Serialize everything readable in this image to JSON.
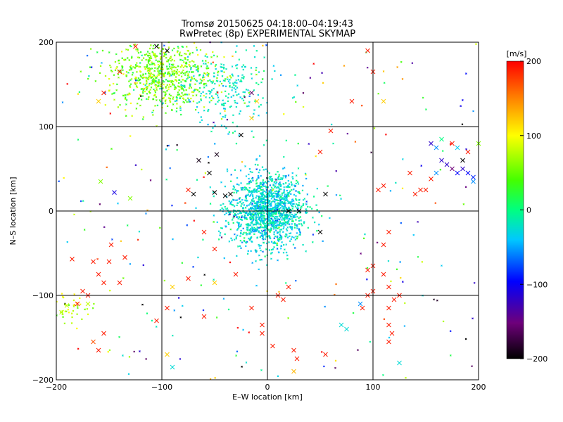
{
  "chart_data": {
    "type": "scatter",
    "title": "Tromsø 20150625 04:18:00–04:19:43",
    "subtitle": "RwPretec (8p) EXPERIMENTAL SKYMAP",
    "xlabel": "E–W location [km]",
    "ylabel": "N–S location [km]",
    "xlim": [
      -200,
      200
    ],
    "ylim": [
      -200,
      200
    ],
    "xticks": [
      -200,
      -100,
      0,
      100,
      200
    ],
    "yticks": [
      -200,
      -100,
      0,
      100,
      200
    ],
    "grid": true,
    "colorbar": {
      "label": "[m/s]",
      "range": [
        -200,
        200
      ],
      "ticks": [
        -200,
        -100,
        0,
        100,
        200
      ],
      "colormap": "rainbow: black-purple-blue-cyan-green-yellow-red"
    },
    "clusters": [
      {
        "name": "center",
        "x": 0,
        "y": 0,
        "spread_x": 18,
        "spread_y": 22,
        "count": 1400,
        "velocity": -30,
        "velocity_spread": 20,
        "marker": "dot"
      },
      {
        "name": "upper-left",
        "x": -100,
        "y": 160,
        "spread_x": 25,
        "spread_y": 20,
        "count": 700,
        "velocity": 55,
        "velocity_spread": 25,
        "marker": "dot"
      },
      {
        "name": "upper-mid",
        "x": -40,
        "y": 140,
        "spread_x": 25,
        "spread_y": 25,
        "count": 250,
        "velocity": -25,
        "velocity_spread": 15,
        "marker": "dot"
      },
      {
        "name": "lower-left",
        "x": -185,
        "y": -115,
        "spread_x": 8,
        "spread_y": 10,
        "count": 40,
        "velocity": 80,
        "velocity_spread": 20,
        "marker": "dot"
      },
      {
        "name": "background",
        "x": 0,
        "y": 0,
        "spread_x": 200,
        "spread_y": 200,
        "count": 250,
        "velocity": 0,
        "velocity_spread": 120,
        "marker": "dot"
      }
    ],
    "x_markers": [
      {
        "x": -165,
        "y": -155,
        "v": 170
      },
      {
        "x": -160,
        "y": -165,
        "v": 190
      },
      {
        "x": -155,
        "y": -145,
        "v": 190
      },
      {
        "x": -170,
        "y": -100,
        "v": 190
      },
      {
        "x": -180,
        "y": -110,
        "v": 190
      },
      {
        "x": -175,
        "y": -95,
        "v": 190
      },
      {
        "x": -155,
        "y": -85,
        "v": 190
      },
      {
        "x": -160,
        "y": -75,
        "v": 190
      },
      {
        "x": -165,
        "y": -60,
        "v": 190
      },
      {
        "x": -150,
        "y": -60,
        "v": 190
      },
      {
        "x": -185,
        "y": -57,
        "v": 190
      },
      {
        "x": -195,
        "y": -120,
        "v": 80
      },
      {
        "x": -190,
        "y": -112,
        "v": 80
      },
      {
        "x": -140,
        "y": -85,
        "v": 190
      },
      {
        "x": -148,
        "y": -40,
        "v": 190
      },
      {
        "x": -95,
        "y": 190,
        "v": -200
      },
      {
        "x": -105,
        "y": 195,
        "v": -200
      },
      {
        "x": -125,
        "y": 195,
        "v": 190
      },
      {
        "x": -140,
        "y": 165,
        "v": 190
      },
      {
        "x": -155,
        "y": 140,
        "v": 190
      },
      {
        "x": -160,
        "y": 130,
        "v": 120
      },
      {
        "x": -158,
        "y": 35,
        "v": 60
      },
      {
        "x": -145,
        "y": 22,
        "v": -110
      },
      {
        "x": -130,
        "y": 15,
        "v": 60
      },
      {
        "x": -90,
        "y": -185,
        "v": -30
      },
      {
        "x": -95,
        "y": -115,
        "v": 190
      },
      {
        "x": -90,
        "y": -90,
        "v": 120
      },
      {
        "x": -105,
        "y": -130,
        "v": 190
      },
      {
        "x": -75,
        "y": -80,
        "v": 190
      },
      {
        "x": -60,
        "y": -125,
        "v": 190
      },
      {
        "x": -55,
        "y": 45,
        "v": -200
      },
      {
        "x": -65,
        "y": 60,
        "v": -190
      },
      {
        "x": -48,
        "y": 67,
        "v": -190
      },
      {
        "x": -50,
        "y": 22,
        "v": -200
      },
      {
        "x": -40,
        "y": 18,
        "v": -200
      },
      {
        "x": -70,
        "y": 20,
        "v": -200
      },
      {
        "x": -75,
        "y": 25,
        "v": 190
      },
      {
        "x": -35,
        "y": 20,
        "v": -200
      },
      {
        "x": -25,
        "y": 90,
        "v": -200
      },
      {
        "x": -15,
        "y": 110,
        "v": 120
      },
      {
        "x": -10,
        "y": 130,
        "v": 120
      },
      {
        "x": -15,
        "y": 140,
        "v": -160
      },
      {
        "x": -60,
        "y": -25,
        "v": 190
      },
      {
        "x": -50,
        "y": -45,
        "v": 190
      },
      {
        "x": -30,
        "y": -75,
        "v": 190
      },
      {
        "x": -50,
        "y": -85,
        "v": 120
      },
      {
        "x": 20,
        "y": 0,
        "v": -200
      },
      {
        "x": 30,
        "y": 0,
        "v": -200
      },
      {
        "x": 50,
        "y": -25,
        "v": -200
      },
      {
        "x": 55,
        "y": 20,
        "v": -200
      },
      {
        "x": 50,
        "y": 70,
        "v": 190
      },
      {
        "x": 60,
        "y": 95,
        "v": 190
      },
      {
        "x": 80,
        "y": 130,
        "v": 190
      },
      {
        "x": 110,
        "y": 130,
        "v": 120
      },
      {
        "x": 100,
        "y": 165,
        "v": 190
      },
      {
        "x": 95,
        "y": 190,
        "v": 190
      },
      {
        "x": 20,
        "y": -90,
        "v": 190
      },
      {
        "x": 10,
        "y": -100,
        "v": 190
      },
      {
        "x": 15,
        "y": -105,
        "v": 190
      },
      {
        "x": 5,
        "y": -160,
        "v": 190
      },
      {
        "x": -5,
        "y": -145,
        "v": 190
      },
      {
        "x": -5,
        "y": -135,
        "v": 190
      },
      {
        "x": 25,
        "y": -165,
        "v": 190
      },
      {
        "x": 28,
        "y": -175,
        "v": 190
      },
      {
        "x": 25,
        "y": -190,
        "v": 130
      },
      {
        "x": 55,
        "y": -170,
        "v": 190
      },
      {
        "x": 70,
        "y": -135,
        "v": -30
      },
      {
        "x": 75,
        "y": -140,
        "v": -30
      },
      {
        "x": 88,
        "y": -110,
        "v": -60
      },
      {
        "x": 90,
        "y": -115,
        "v": 190
      },
      {
        "x": 95,
        "y": -100,
        "v": 190
      },
      {
        "x": 100,
        "y": -95,
        "v": 190
      },
      {
        "x": 100,
        "y": -65,
        "v": 190
      },
      {
        "x": 95,
        "y": -70,
        "v": 190
      },
      {
        "x": 110,
        "y": -75,
        "v": 190
      },
      {
        "x": 115,
        "y": -90,
        "v": 190
      },
      {
        "x": 115,
        "y": -115,
        "v": 190
      },
      {
        "x": 120,
        "y": -105,
        "v": 190
      },
      {
        "x": 125,
        "y": -100,
        "v": 190
      },
      {
        "x": 115,
        "y": -135,
        "v": 190
      },
      {
        "x": 118,
        "y": -145,
        "v": 190
      },
      {
        "x": 125,
        "y": -180,
        "v": -30
      },
      {
        "x": 115,
        "y": -155,
        "v": 190
      },
      {
        "x": 110,
        "y": -40,
        "v": 190
      },
      {
        "x": 115,
        "y": -25,
        "v": 190
      },
      {
        "x": 105,
        "y": 25,
        "v": 190
      },
      {
        "x": 110,
        "y": 30,
        "v": 190
      },
      {
        "x": 135,
        "y": 45,
        "v": 190
      },
      {
        "x": 140,
        "y": 20,
        "v": 190
      },
      {
        "x": 145,
        "y": 25,
        "v": 190
      },
      {
        "x": 150,
        "y": 25,
        "v": 190
      },
      {
        "x": 155,
        "y": 38,
        "v": 190
      },
      {
        "x": 160,
        "y": 45,
        "v": -60
      },
      {
        "x": 165,
        "y": 60,
        "v": -120
      },
      {
        "x": 170,
        "y": 55,
        "v": -120
      },
      {
        "x": 175,
        "y": 50,
        "v": -150
      },
      {
        "x": 180,
        "y": 45,
        "v": -100
      },
      {
        "x": 185,
        "y": 50,
        "v": -120
      },
      {
        "x": 190,
        "y": 45,
        "v": -100
      },
      {
        "x": 195,
        "y": 40,
        "v": -90
      },
      {
        "x": 195,
        "y": 35,
        "v": -60
      },
      {
        "x": 185,
        "y": 60,
        "v": -200
      },
      {
        "x": 190,
        "y": 70,
        "v": 190
      },
      {
        "x": 175,
        "y": 80,
        "v": 190
      },
      {
        "x": 180,
        "y": 75,
        "v": -40
      },
      {
        "x": 160,
        "y": 75,
        "v": -60
      },
      {
        "x": 155,
        "y": 80,
        "v": -120
      },
      {
        "x": 200,
        "y": 80,
        "v": 60
      },
      {
        "x": 165,
        "y": 85,
        "v": 0
      },
      {
        "x": -95,
        "y": -170,
        "v": 120
      },
      {
        "x": -170,
        "y": -110,
        "v": 80
      },
      {
        "x": -135,
        "y": -55,
        "v": 190
      },
      {
        "x": -15,
        "y": -115,
        "v": 190
      }
    ]
  }
}
